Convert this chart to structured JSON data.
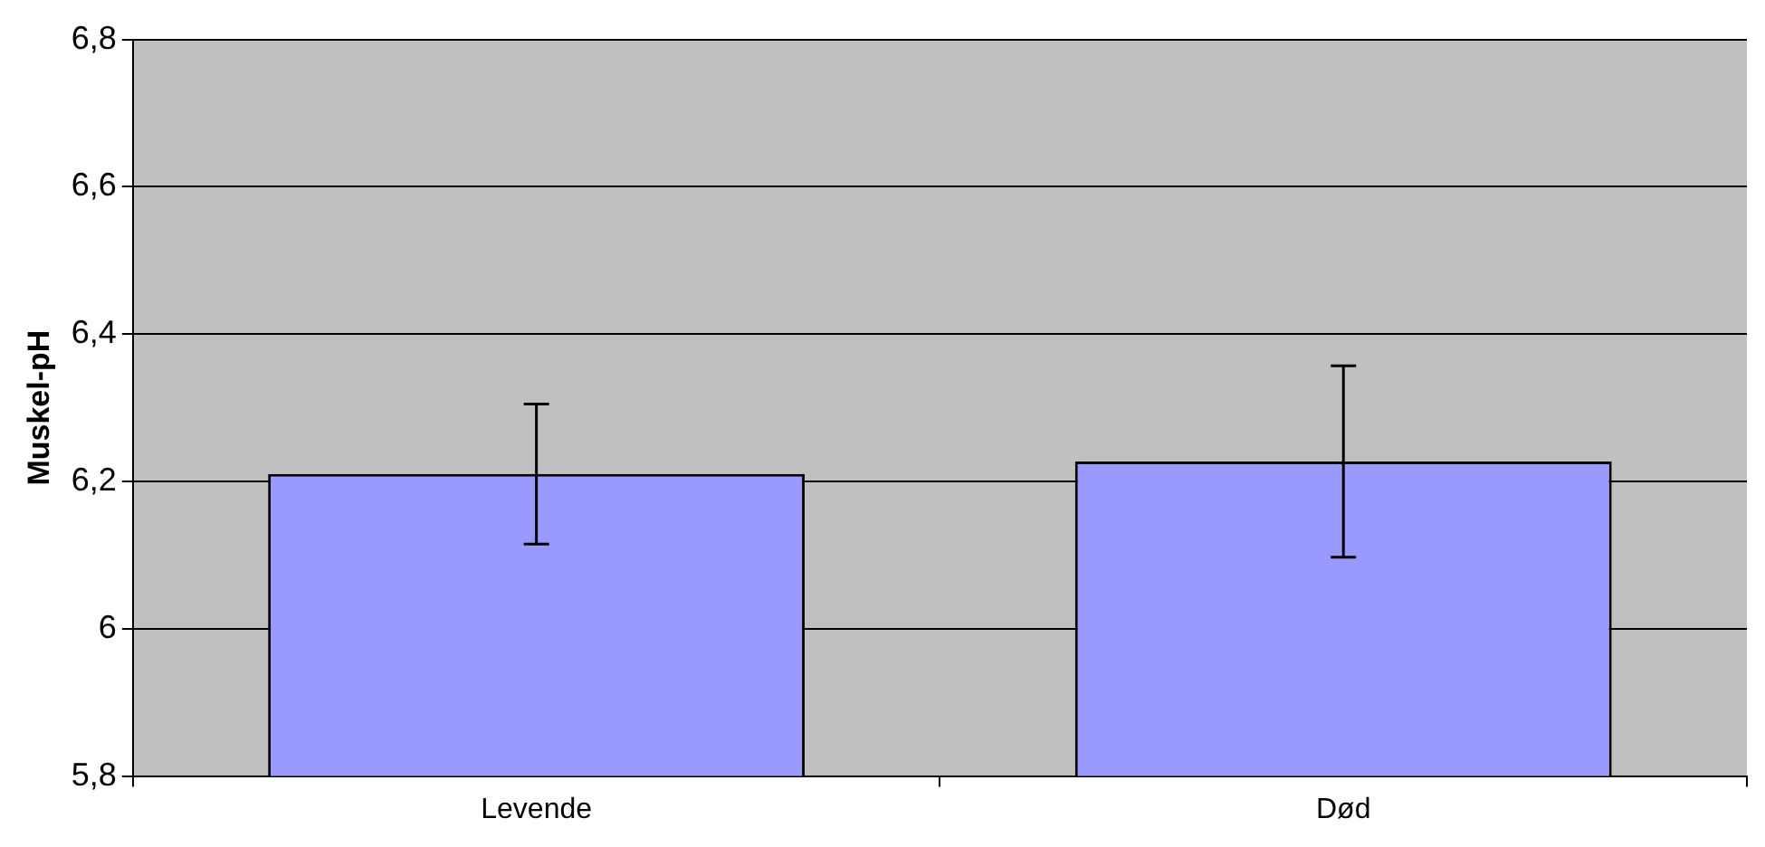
{
  "chart_data": {
    "type": "bar",
    "ylabel": "Muskel-pH",
    "categories": [
      "Levende",
      "Død"
    ],
    "series": [
      {
        "color": "#9999ff",
        "values": [
          6.21,
          6.227
        ],
        "errors": [
          0.095,
          0.13
        ]
      }
    ],
    "ylim": [
      5.8,
      6.8
    ],
    "yticks": [
      {
        "value": 5.8,
        "label": "5,8"
      },
      6,
      {
        "value": 6.2,
        "label": "6,2"
      },
      {
        "value": 6.4,
        "label": "6,4"
      },
      {
        "value": 6.6,
        "label": "6,6"
      },
      {
        "value": 6.8,
        "label": "6,8"
      }
    ],
    "grid": "y",
    "legend": false
  }
}
